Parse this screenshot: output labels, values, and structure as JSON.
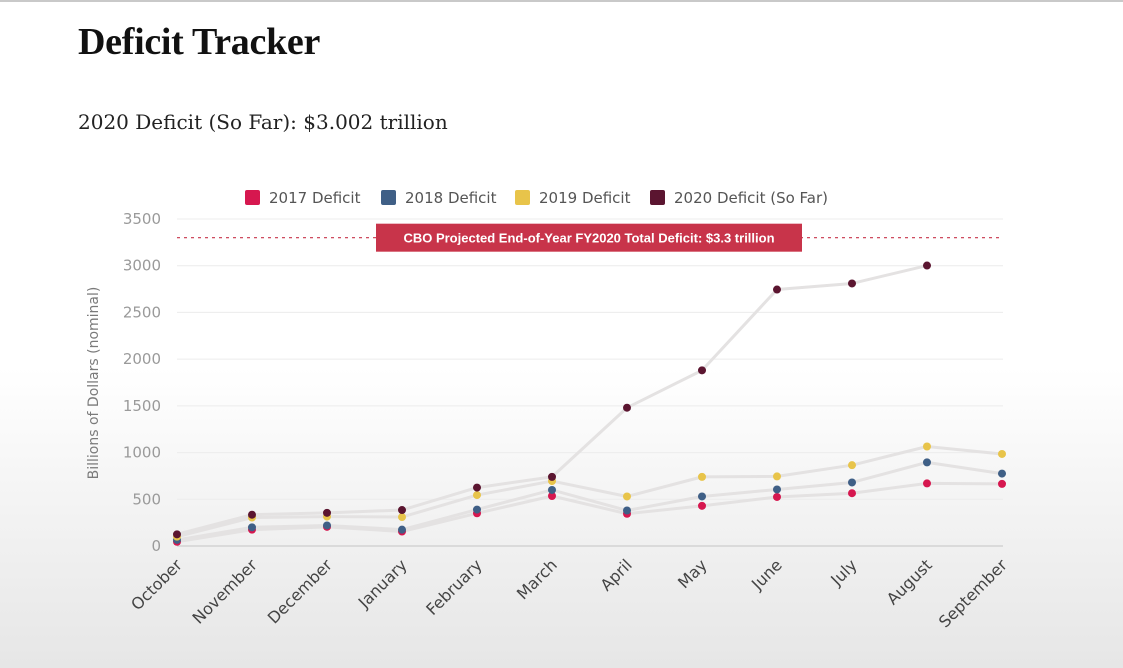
{
  "page": {
    "title": "Deficit Tracker",
    "subtitle": "2020 Deficit (So Far): $3.002 trillion"
  },
  "chart_data": {
    "type": "line",
    "title": "",
    "xlabel": "",
    "ylabel": "Billions of Dollars (nominal)",
    "ylim": [
      0,
      3500
    ],
    "yticks": [
      0,
      500,
      1000,
      1500,
      2000,
      2500,
      3000,
      3500
    ],
    "grid": true,
    "legend_position": "top",
    "line_color": "#e4e2e2",
    "categories": [
      "October",
      "November",
      "December",
      "January",
      "February",
      "March",
      "April",
      "May",
      "June",
      "July",
      "August",
      "September"
    ],
    "series": [
      {
        "name": "2017 Deficit",
        "color": "#d6174f",
        "values": [
          45,
          175,
          205,
          155,
          350,
          535,
          345,
          430,
          525,
          565,
          670,
          665
        ]
      },
      {
        "name": "2018 Deficit",
        "color": "#3f5f86",
        "values": [
          65,
          200,
          220,
          175,
          390,
          600,
          380,
          530,
          605,
          680,
          895,
          775
        ]
      },
      {
        "name": "2019 Deficit",
        "color": "#e8c44a",
        "values": [
          100,
          305,
          315,
          310,
          545,
          695,
          530,
          740,
          745,
          865,
          1065,
          985
        ]
      },
      {
        "name": "2020 Deficit (So Far)",
        "color": "#5b1530",
        "values": [
          125,
          335,
          355,
          385,
          625,
          740,
          1480,
          1880,
          2745,
          2810,
          3002,
          null
        ]
      }
    ],
    "reference_line": {
      "value": 3300,
      "color": "#c8344a",
      "label": "CBO Projected End-of-Year FY2020 Total Deficit: $3.3 trillion"
    }
  }
}
